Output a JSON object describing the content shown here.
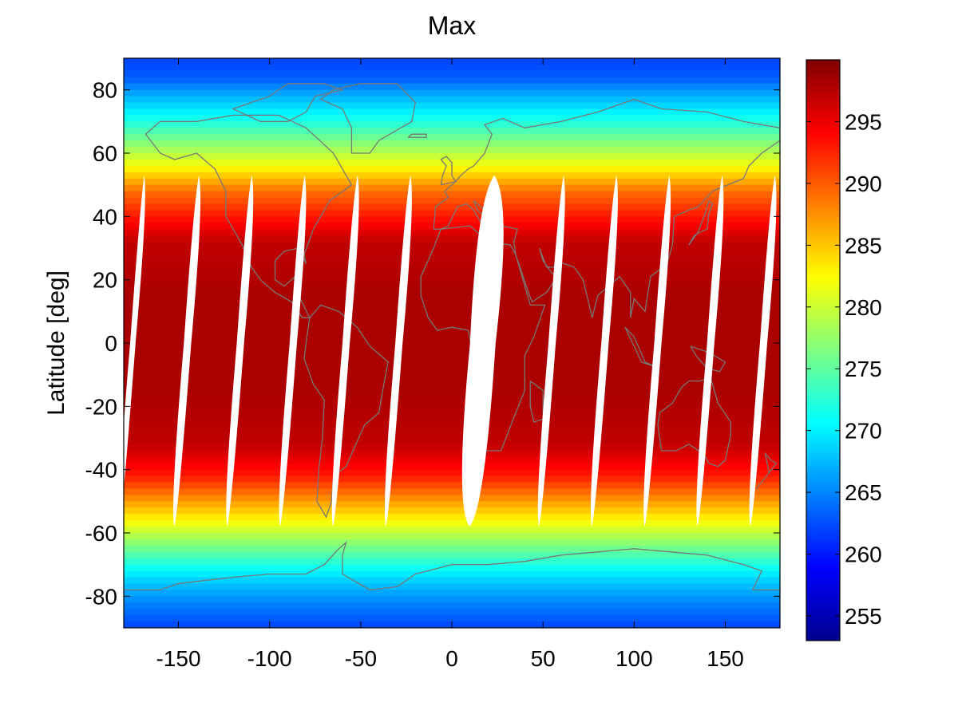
{
  "chart_data": {
    "type": "heatmap",
    "title": "Max",
    "xlabel": "",
    "ylabel": "Latitude [deg]",
    "xlim": [
      -180,
      180
    ],
    "ylim": [
      -90,
      90
    ],
    "x_ticks": [
      -150,
      -100,
      -50,
      0,
      50,
      100,
      150
    ],
    "y_ticks": [
      -80,
      -60,
      -40,
      -20,
      0,
      20,
      40,
      60,
      80
    ],
    "colorbar": {
      "range": [
        253,
        300
      ],
      "ticks": [
        255,
        260,
        265,
        270,
        275,
        280,
        285,
        290,
        295
      ],
      "colormap": "jet"
    },
    "overlay": "coastlines",
    "latitude_profile": [
      {
        "lat": 90,
        "value": 262
      },
      {
        "lat": 84,
        "value": 263
      },
      {
        "lat": 78,
        "value": 267
      },
      {
        "lat": 70,
        "value": 272
      },
      {
        "lat": 63,
        "value": 277
      },
      {
        "lat": 56,
        "value": 282
      },
      {
        "lat": 48,
        "value": 289
      },
      {
        "lat": 40,
        "value": 293
      },
      {
        "lat": 32,
        "value": 297
      },
      {
        "lat": 15,
        "value": 298
      },
      {
        "lat": 0,
        "value": 298
      },
      {
        "lat": -15,
        "value": 298
      },
      {
        "lat": -32,
        "value": 297
      },
      {
        "lat": -42,
        "value": 293
      },
      {
        "lat": -50,
        "value": 287
      },
      {
        "lat": -58,
        "value": 281
      },
      {
        "lat": -66,
        "value": 275
      },
      {
        "lat": -74,
        "value": 269
      },
      {
        "lat": -82,
        "value": 265
      },
      {
        "lat": -90,
        "value": 262
      }
    ],
    "missing_data_gaps": [
      {
        "lon_at_equator": -175,
        "width_deg": 3
      },
      {
        "lon_at_equator": -145,
        "width_deg": 4
      },
      {
        "lon_at_equator": -116,
        "width_deg": 4
      },
      {
        "lon_at_equator": -87,
        "width_deg": 4
      },
      {
        "lon_at_equator": -58,
        "width_deg": 4
      },
      {
        "lon_at_equator": -29,
        "width_deg": 4
      },
      {
        "lon_at_equator": 17,
        "width_deg": 14
      },
      {
        "lon_at_equator": 55,
        "width_deg": 4
      },
      {
        "lon_at_equator": 84,
        "width_deg": 4
      },
      {
        "lon_at_equator": 113,
        "width_deg": 4
      },
      {
        "lon_at_equator": 142,
        "width_deg": 4
      },
      {
        "lon_at_equator": 171,
        "width_deg": 4
      }
    ]
  }
}
